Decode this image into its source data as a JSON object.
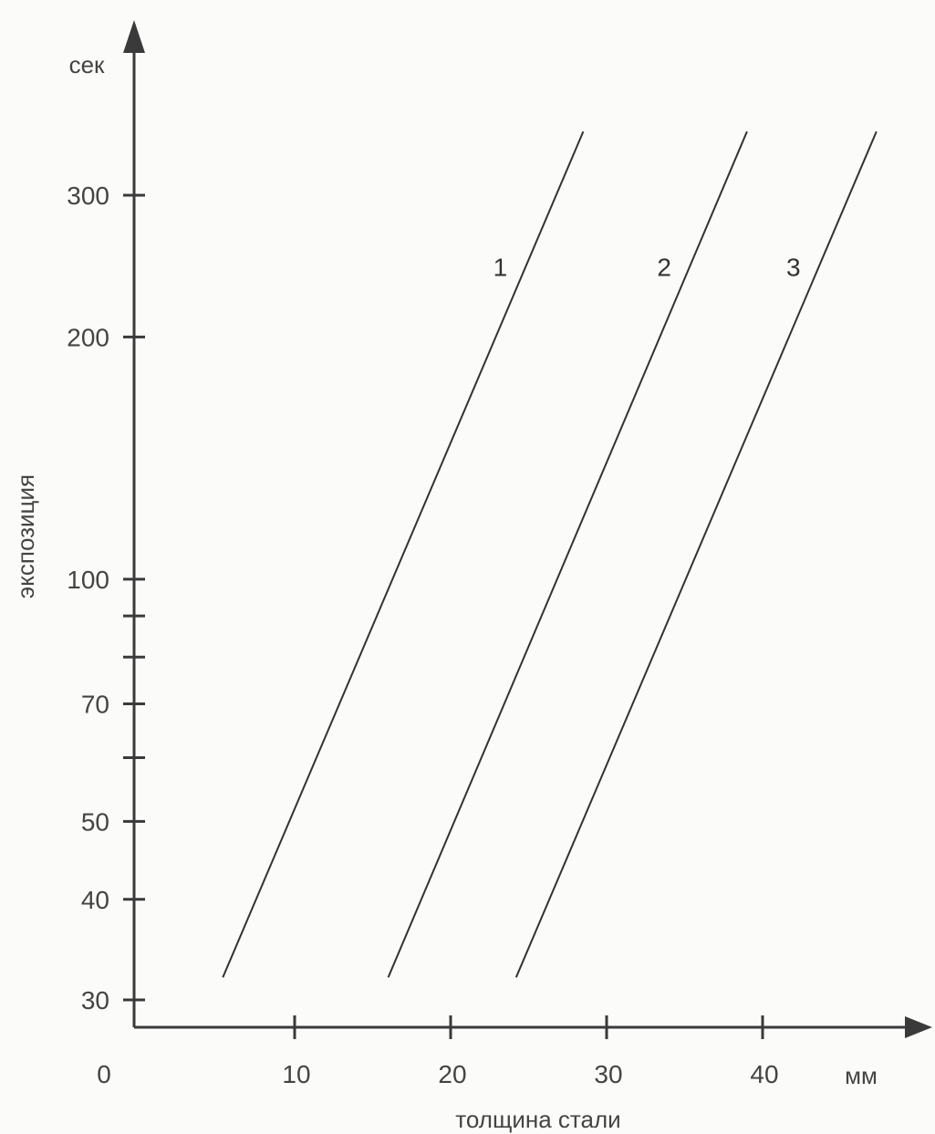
{
  "chart_data": {
    "type": "line",
    "xlabel": "толщина стали",
    "x_unit": "мм",
    "ylabel": "экспозиция",
    "y_unit": "сек",
    "y_scale": "log",
    "xlim": [
      0,
      45
    ],
    "ylim": [
      30,
      400
    ],
    "x_ticks": [
      {
        "value": 0,
        "label": "0"
      },
      {
        "value": 10,
        "label": "10"
      },
      {
        "value": 20,
        "label": "20"
      },
      {
        "value": 30,
        "label": "30"
      },
      {
        "value": 40,
        "label": "40"
      }
    ],
    "y_ticks": [
      {
        "value": 30,
        "label": "30"
      },
      {
        "value": 40,
        "label": "40"
      },
      {
        "value": 50,
        "label": "50"
      },
      {
        "value": 60,
        "label": ""
      },
      {
        "value": 70,
        "label": "70"
      },
      {
        "value": 80,
        "label": ""
      },
      {
        "value": 90,
        "label": ""
      },
      {
        "value": 100,
        "label": "100"
      },
      {
        "value": 200,
        "label": "200"
      },
      {
        "value": 300,
        "label": "300"
      }
    ],
    "grid": false,
    "series": [
      {
        "name": "1",
        "x": [
          5.4,
          28.5
        ],
        "y": [
          32,
          360
        ]
      },
      {
        "name": "2",
        "x": [
          16.0,
          39.0
        ],
        "y": [
          32,
          360
        ]
      },
      {
        "name": "3",
        "x": [
          24.2,
          47.3
        ],
        "y": [
          32,
          360
        ]
      }
    ]
  }
}
